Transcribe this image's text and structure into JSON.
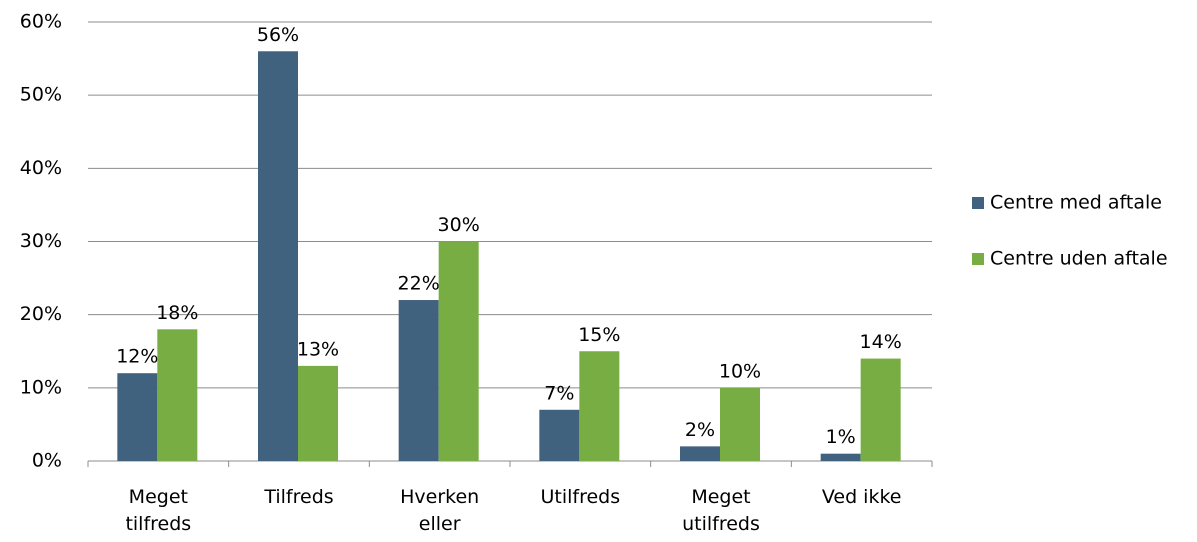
{
  "chart_data": {
    "type": "bar",
    "categories": [
      "Meget\ntilfreds",
      "Tilfreds",
      "Hverken\neller",
      "Utilfreds",
      "Meget\nutilfreds",
      "Ved ikke"
    ],
    "series": [
      {
        "name": "Centre med aftale",
        "color": "#41627f",
        "values": [
          12,
          56,
          22,
          7,
          2,
          1
        ],
        "value_labels": [
          "12%",
          "56%",
          "22%",
          "7%",
          "2%",
          "1%"
        ]
      },
      {
        "name": "Centre uden aftale",
        "color": "#77ad42",
        "values": [
          18,
          13,
          30,
          15,
          10,
          14
        ],
        "value_labels": [
          "18%",
          "13%",
          "30%",
          "15%",
          "10%",
          "14%"
        ]
      }
    ],
    "ylim": [
      0,
      60
    ],
    "yticks": [
      {
        "value": 0,
        "label": "0%"
      },
      {
        "value": 10,
        "label": "10%"
      },
      {
        "value": 20,
        "label": "20%"
      },
      {
        "value": 30,
        "label": "30%"
      },
      {
        "value": 40,
        "label": "40%"
      },
      {
        "value": 50,
        "label": "50%"
      },
      {
        "value": 60,
        "label": "60%"
      }
    ],
    "grid": true,
    "legend": "right"
  }
}
